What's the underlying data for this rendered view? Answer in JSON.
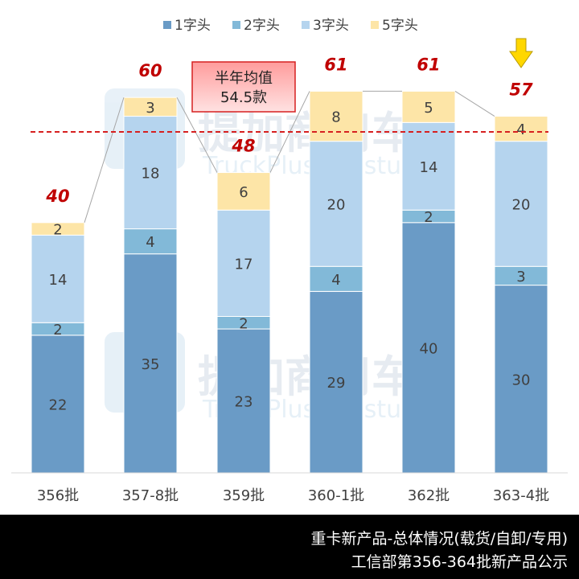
{
  "chart_data": {
    "type": "bar",
    "stacked": true,
    "categories": [
      "356批",
      "357-8批",
      "359批",
      "360-1批",
      "362批",
      "363-4批"
    ],
    "series": [
      {
        "name": "1字头",
        "color": "#6a9bc6",
        "values": [
          22,
          35,
          23,
          29,
          40,
          30
        ]
      },
      {
        "name": "2字头",
        "color": "#82b9d8",
        "values": [
          2,
          4,
          2,
          4,
          2,
          3
        ]
      },
      {
        "name": "3字头",
        "color": "#b5d4ee",
        "values": [
          14,
          18,
          17,
          20,
          14,
          20
        ]
      },
      {
        "name": "5字头",
        "color": "#fde5a7",
        "values": [
          2,
          3,
          6,
          8,
          5,
          4
        ]
      }
    ],
    "totals": [
      40,
      60,
      48,
      61,
      61,
      57
    ],
    "average": {
      "value": 54.5,
      "label_line1": "半年均值",
      "label_line2": "54.5款"
    },
    "ylim": [
      0,
      70
    ],
    "legend_position": "top",
    "grid": false
  },
  "watermark": {
    "logo_text": "提加商用车",
    "sub_text": "TruckPlus CV studio"
  },
  "footer": {
    "line1": "重卡新产品-总体情况(载货/自卸/专用)",
    "line2": "工信部第356-364批新产品公示"
  },
  "colors": {
    "total_label": "#c00000",
    "average_line": "#d62020",
    "arrow": "#ffd700"
  }
}
